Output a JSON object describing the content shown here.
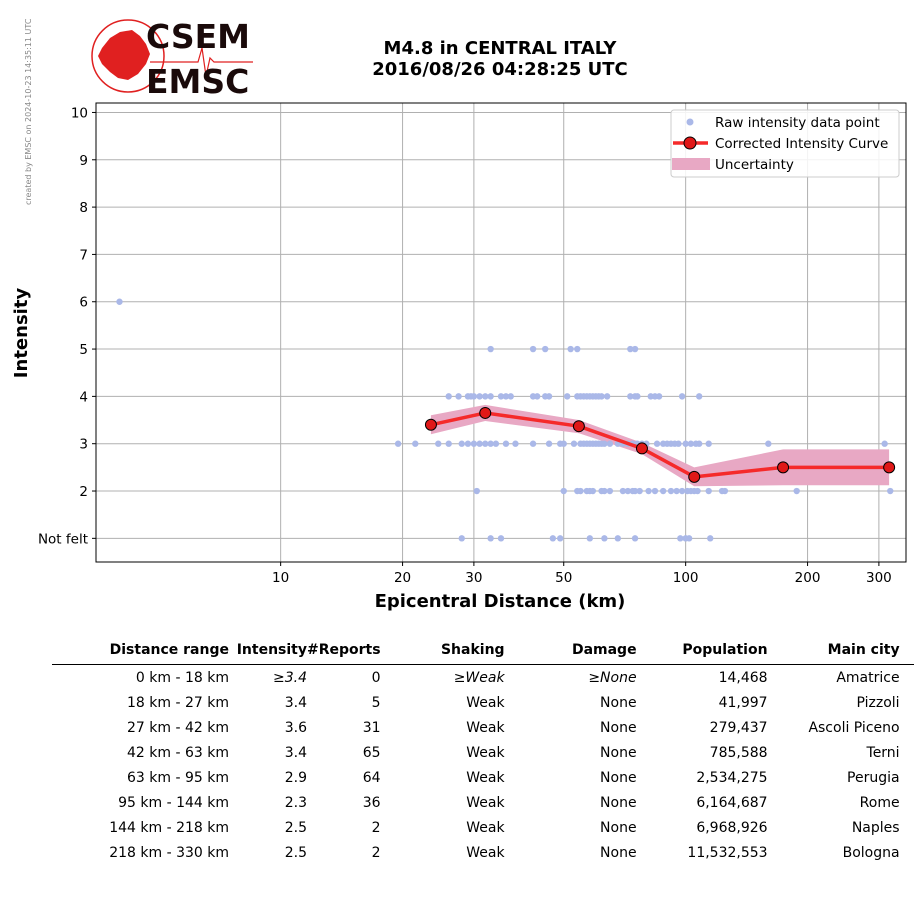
{
  "side_note": "created by EMSC on 2024-10-23 14:35:11 UTC",
  "logo": {
    "top_text": "CSEM",
    "bottom_text": "EMSC",
    "color": "#e02020"
  },
  "title": {
    "line1": "M4.8 in CENTRAL ITALY",
    "line2": "2016/08/26 04:28:25 UTC"
  },
  "chart_data": {
    "type": "scatter",
    "xlabel": "Epicentral Distance (km)",
    "ylabel": "Intensity",
    "xscale": "log",
    "xlim": [
      3.5,
      350
    ],
    "ylim": [
      0.5,
      10.2
    ],
    "xticks": [
      10,
      20,
      30,
      50,
      100,
      200,
      300
    ],
    "yticks": [
      {
        "v": 1,
        "label": "Not felt"
      },
      {
        "v": 2,
        "label": "2"
      },
      {
        "v": 3,
        "label": "3"
      },
      {
        "v": 4,
        "label": "4"
      },
      {
        "v": 5,
        "label": "5"
      },
      {
        "v": 6,
        "label": "6"
      },
      {
        "v": 7,
        "label": "7"
      },
      {
        "v": 8,
        "label": "8"
      },
      {
        "v": 9,
        "label": "9"
      },
      {
        "v": 10,
        "label": "10"
      }
    ],
    "grid": true,
    "legend": {
      "position": "top-right",
      "raw": "Raw intensity data point",
      "curve": "Corrected Intensity Curve",
      "uncertainty": "Uncertainty"
    },
    "colors": {
      "raw": "#aab8e8",
      "curve": "#f52a2a",
      "marker": "#e01818",
      "band": "#e8a8c4"
    },
    "raw_points": [
      [
        4,
        6
      ],
      [
        33,
        5
      ],
      [
        42,
        5
      ],
      [
        45,
        5
      ],
      [
        52,
        5
      ],
      [
        54,
        5
      ],
      [
        73,
        5
      ],
      [
        75,
        5
      ],
      [
        26,
        4
      ],
      [
        27.5,
        4
      ],
      [
        29,
        4
      ],
      [
        29.5,
        4
      ],
      [
        30,
        4
      ],
      [
        31,
        4
      ],
      [
        32,
        4
      ],
      [
        33,
        4
      ],
      [
        35,
        4
      ],
      [
        36,
        4
      ],
      [
        37,
        4
      ],
      [
        42,
        4
      ],
      [
        43,
        4
      ],
      [
        45,
        4
      ],
      [
        46,
        4
      ],
      [
        51,
        4
      ],
      [
        54,
        4
      ],
      [
        55,
        4
      ],
      [
        56,
        4
      ],
      [
        57,
        4
      ],
      [
        58,
        4
      ],
      [
        59,
        4
      ],
      [
        60,
        4
      ],
      [
        61,
        4
      ],
      [
        62,
        4
      ],
      [
        64,
        4
      ],
      [
        73,
        4
      ],
      [
        75,
        4
      ],
      [
        76,
        4
      ],
      [
        82,
        4
      ],
      [
        84,
        4
      ],
      [
        86,
        4
      ],
      [
        98,
        4
      ],
      [
        108,
        4
      ],
      [
        19.5,
        3
      ],
      [
        21.5,
        3
      ],
      [
        24.5,
        3
      ],
      [
        26,
        3
      ],
      [
        28,
        3
      ],
      [
        29,
        3
      ],
      [
        30,
        3
      ],
      [
        31,
        3
      ],
      [
        32,
        3
      ],
      [
        33,
        3
      ],
      [
        34,
        3
      ],
      [
        36,
        3
      ],
      [
        38,
        3
      ],
      [
        42,
        3
      ],
      [
        46,
        3
      ],
      [
        49,
        3
      ],
      [
        50,
        3
      ],
      [
        53,
        3
      ],
      [
        55,
        3
      ],
      [
        56,
        3
      ],
      [
        57,
        3
      ],
      [
        58,
        3
      ],
      [
        59,
        3
      ],
      [
        60,
        3
      ],
      [
        61,
        3
      ],
      [
        62,
        3
      ],
      [
        63,
        3
      ],
      [
        65,
        3
      ],
      [
        68,
        3
      ],
      [
        70,
        3
      ],
      [
        72,
        3
      ],
      [
        74,
        3
      ],
      [
        76,
        3
      ],
      [
        78,
        3
      ],
      [
        80,
        3
      ],
      [
        85,
        3
      ],
      [
        88,
        3
      ],
      [
        90,
        3
      ],
      [
        92,
        3
      ],
      [
        94,
        3
      ],
      [
        96,
        3
      ],
      [
        100,
        3
      ],
      [
        103,
        3
      ],
      [
        106,
        3
      ],
      [
        108,
        3
      ],
      [
        114,
        3
      ],
      [
        160,
        3
      ],
      [
        310,
        3
      ],
      [
        30.5,
        2
      ],
      [
        50,
        2
      ],
      [
        54,
        2
      ],
      [
        55,
        2
      ],
      [
        57,
        2
      ],
      [
        58,
        2
      ],
      [
        59,
        2
      ],
      [
        62,
        2
      ],
      [
        63,
        2
      ],
      [
        65,
        2
      ],
      [
        70,
        2
      ],
      [
        72,
        2
      ],
      [
        74,
        2
      ],
      [
        75,
        2
      ],
      [
        77,
        2
      ],
      [
        81,
        2
      ],
      [
        84,
        2
      ],
      [
        88,
        2
      ],
      [
        92,
        2
      ],
      [
        95,
        2
      ],
      [
        98,
        2
      ],
      [
        101,
        2
      ],
      [
        103,
        2
      ],
      [
        105,
        2
      ],
      [
        107,
        2
      ],
      [
        114,
        2
      ],
      [
        123,
        2
      ],
      [
        125,
        2
      ],
      [
        188,
        2
      ],
      [
        320,
        2
      ],
      [
        28,
        1
      ],
      [
        33,
        1
      ],
      [
        35,
        1
      ],
      [
        47,
        1
      ],
      [
        49,
        1
      ],
      [
        58,
        1
      ],
      [
        63,
        1
      ],
      [
        68,
        1
      ],
      [
        75,
        1
      ],
      [
        97,
        1
      ],
      [
        100,
        1
      ],
      [
        102,
        1
      ],
      [
        115,
        1
      ]
    ],
    "curve_points": [
      [
        23.5,
        3.4
      ],
      [
        32,
        3.65
      ],
      [
        54.5,
        3.37
      ],
      [
        78,
        2.9
      ],
      [
        105,
        2.3
      ],
      [
        174,
        2.5
      ],
      [
        318,
        2.5
      ]
    ],
    "band_upper": [
      [
        23.5,
        3.6
      ],
      [
        32,
        3.82
      ],
      [
        54.5,
        3.5
      ],
      [
        78,
        3.02
      ],
      [
        105,
        2.5
      ],
      [
        174,
        2.88
      ],
      [
        318,
        2.88
      ]
    ],
    "band_lower": [
      [
        23.5,
        3.2
      ],
      [
        32,
        3.48
      ],
      [
        54.5,
        3.22
      ],
      [
        78,
        2.78
      ],
      [
        105,
        2.1
      ],
      [
        174,
        2.12
      ],
      [
        318,
        2.12
      ]
    ]
  },
  "table": {
    "headers": [
      "Distance range",
      "Intensity",
      "#Reports",
      "Shaking",
      "Damage",
      "Population",
      "Main city"
    ],
    "rows": [
      {
        "range": "0 km -   18 km",
        "intensity": "≥3.4",
        "reports": "0",
        "shaking": "≥Weak",
        "damage": "≥None",
        "population": "14,468",
        "city": "Amatrice"
      },
      {
        "range": "18 km -   27 km",
        "intensity": "3.4",
        "reports": "5",
        "shaking": "Weak",
        "damage": "None",
        "population": "41,997",
        "city": "Pizzoli"
      },
      {
        "range": "27 km -   42 km",
        "intensity": "3.6",
        "reports": "31",
        "shaking": "Weak",
        "damage": "None",
        "population": "279,437",
        "city": "Ascoli Piceno"
      },
      {
        "range": "42 km -   63 km",
        "intensity": "3.4",
        "reports": "65",
        "shaking": "Weak",
        "damage": "None",
        "population": "785,588",
        "city": "Terni"
      },
      {
        "range": "63 km -   95 km",
        "intensity": "2.9",
        "reports": "64",
        "shaking": "Weak",
        "damage": "None",
        "population": "2,534,275",
        "city": "Perugia"
      },
      {
        "range": "95 km -  144 km",
        "intensity": "2.3",
        "reports": "36",
        "shaking": "Weak",
        "damage": "None",
        "population": "6,164,687",
        "city": "Rome"
      },
      {
        "range": "144 km -  218 km",
        "intensity": "2.5",
        "reports": "2",
        "shaking": "Weak",
        "damage": "None",
        "population": "6,968,926",
        "city": "Naples"
      },
      {
        "range": "218 km -  330 km",
        "intensity": "2.5",
        "reports": "2",
        "shaking": "Weak",
        "damage": "None",
        "population": "11,532,553",
        "city": "Bologna"
      }
    ]
  }
}
